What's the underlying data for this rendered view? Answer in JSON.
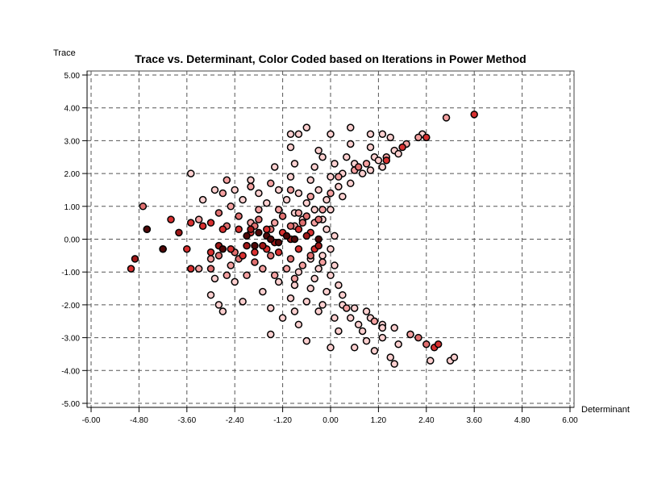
{
  "chart_data": {
    "type": "scatter",
    "title": "Trace vs. Determinant, Color Coded based on Iterations in Power Method",
    "xlabel": "Determinant",
    "ylabel": "Trace",
    "xlim": [
      -6.0,
      6.0
    ],
    "ylim": [
      -5.0,
      5.0
    ],
    "xticks": [
      "-6.00",
      "-4.80",
      "-3.60",
      "-2.40",
      "-1.20",
      "0.00",
      "1.20",
      "2.40",
      "3.60",
      "4.80",
      "6.00"
    ],
    "yticks": [
      "5.00",
      "4.00",
      "3.00",
      "2.00",
      "1.00",
      "0.00",
      "-1.00",
      "-2.00",
      "-3.00",
      "-4.00",
      "-5.00"
    ],
    "grid": true,
    "grid_style": "dashed",
    "legend": "none",
    "colors": {
      "very_light": "#ffd0d0",
      "light": "#f4a0a0",
      "medium": "#e07070",
      "red": "#d83030",
      "dark_red": "#a01818",
      "very_dark": "#500808",
      "marker_edge": "#000000"
    },
    "series": [
      {
        "color_key": "very_light",
        "points": [
          [
            -0.8,
            3.2
          ],
          [
            -0.6,
            3.4
          ],
          [
            0.0,
            3.2
          ],
          [
            0.5,
            3.4
          ],
          [
            1.0,
            3.2
          ],
          [
            1.3,
            3.2
          ],
          [
            1.5,
            3.1
          ],
          [
            2.3,
            3.2
          ],
          [
            -1.0,
            3.2
          ],
          [
            -1.0,
            2.8
          ],
          [
            -0.3,
            2.7
          ],
          [
            0.5,
            2.9
          ],
          [
            1.0,
            2.8
          ],
          [
            1.6,
            2.7
          ],
          [
            -0.2,
            2.5
          ],
          [
            0.4,
            2.5
          ],
          [
            1.1,
            2.5
          ],
          [
            1.7,
            2.6
          ],
          [
            -1.4,
            2.2
          ],
          [
            -0.9,
            2.3
          ],
          [
            -0.4,
            2.2
          ],
          [
            0.1,
            2.3
          ],
          [
            0.6,
            2.3
          ],
          [
            1.2,
            2.4
          ],
          [
            -3.5,
            2.0
          ],
          [
            -2.0,
            1.8
          ],
          [
            -1.0,
            1.9
          ],
          [
            -0.5,
            1.8
          ],
          [
            0.0,
            1.9
          ],
          [
            0.3,
            2.0
          ],
          [
            0.8,
            2.0
          ],
          [
            1.0,
            2.1
          ],
          [
            1.3,
            2.2
          ],
          [
            -2.9,
            1.5
          ],
          [
            -2.4,
            1.5
          ],
          [
            -1.8,
            1.4
          ],
          [
            -1.3,
            1.5
          ],
          [
            -0.8,
            1.4
          ],
          [
            -0.3,
            1.5
          ],
          [
            0.2,
            1.6
          ],
          [
            0.5,
            1.7
          ],
          [
            -3.2,
            1.2
          ],
          [
            -2.2,
            1.2
          ],
          [
            -1.6,
            1.1
          ],
          [
            -1.1,
            1.2
          ],
          [
            -0.6,
            1.1
          ],
          [
            -0.1,
            1.2
          ],
          [
            0.3,
            1.3
          ],
          [
            -0.9,
            0.8
          ],
          [
            -0.4,
            0.9
          ],
          [
            0.0,
            0.9
          ],
          [
            -0.2,
            0.6
          ],
          [
            -0.7,
            0.6
          ],
          [
            -0.1,
            0.3
          ],
          [
            0.1,
            0.1
          ],
          [
            -0.2,
            -0.5
          ],
          [
            0.0,
            -0.3
          ],
          [
            -0.5,
            -0.6
          ],
          [
            -0.3,
            -0.9
          ],
          [
            0.1,
            -0.8
          ],
          [
            -0.8,
            -1.0
          ],
          [
            -0.4,
            -1.2
          ],
          [
            0.0,
            -1.1
          ],
          [
            0.2,
            -1.4
          ],
          [
            -1.3,
            -1.3
          ],
          [
            -0.9,
            -1.4
          ],
          [
            -0.5,
            -1.5
          ],
          [
            -0.1,
            -1.6
          ],
          [
            0.3,
            -1.7
          ],
          [
            -2.9,
            -1.2
          ],
          [
            -2.4,
            -1.3
          ],
          [
            -1.7,
            -1.6
          ],
          [
            -1.0,
            -1.8
          ],
          [
            -0.6,
            -1.9
          ],
          [
            -0.2,
            -2.0
          ],
          [
            0.3,
            -2.0
          ],
          [
            0.6,
            -2.1
          ],
          [
            -3.0,
            -1.7
          ],
          [
            -2.2,
            -1.9
          ],
          [
            -1.5,
            -2.1
          ],
          [
            -0.9,
            -2.2
          ],
          [
            -0.3,
            -2.2
          ],
          [
            0.1,
            -2.4
          ],
          [
            0.5,
            -2.4
          ],
          [
            0.9,
            -2.2
          ],
          [
            -2.8,
            -2.0
          ],
          [
            -1.2,
            -2.4
          ],
          [
            -0.8,
            -2.6
          ],
          [
            0.2,
            -2.8
          ],
          [
            0.7,
            -2.6
          ],
          [
            1.0,
            -2.4
          ],
          [
            1.3,
            -2.6
          ],
          [
            -2.7,
            -2.2
          ],
          [
            -1.5,
            -2.9
          ],
          [
            -0.6,
            -3.1
          ],
          [
            0.0,
            -3.3
          ],
          [
            0.9,
            -3.1
          ],
          [
            1.3,
            -3.0
          ],
          [
            1.7,
            -3.2
          ],
          [
            0.6,
            -3.3
          ],
          [
            1.1,
            -3.4
          ],
          [
            1.5,
            -3.6
          ],
          [
            1.6,
            -3.8
          ],
          [
            2.5,
            -3.7
          ],
          [
            3.0,
            -3.7
          ],
          [
            3.1,
            -3.6
          ],
          [
            2.0,
            -2.9
          ],
          [
            1.3,
            -2.7
          ],
          [
            1.6,
            -2.7
          ],
          [
            0.8,
            -2.8
          ]
        ]
      },
      {
        "color_key": "light",
        "points": [
          [
            2.9,
            3.7
          ],
          [
            2.2,
            3.1
          ],
          [
            1.9,
            2.9
          ],
          [
            1.4,
            2.5
          ],
          [
            0.9,
            2.3
          ],
          [
            0.6,
            2.1
          ],
          [
            0.2,
            1.9
          ],
          [
            -2.6,
            1.8
          ],
          [
            -2.7,
            1.4
          ],
          [
            -2.0,
            1.6
          ],
          [
            -1.5,
            1.7
          ],
          [
            -1.0,
            1.5
          ],
          [
            -0.5,
            1.3
          ],
          [
            0.0,
            1.4
          ],
          [
            -2.5,
            1.0
          ],
          [
            -1.8,
            0.9
          ],
          [
            -1.3,
            0.9
          ],
          [
            -0.8,
            0.8
          ],
          [
            -0.2,
            0.9
          ],
          [
            -3.3,
            0.6
          ],
          [
            -2.0,
            0.5
          ],
          [
            -1.4,
            0.5
          ],
          [
            -0.9,
            0.4
          ],
          [
            -0.4,
            0.5
          ],
          [
            -3.0,
            -0.6
          ],
          [
            -2.5,
            -0.8
          ],
          [
            -1.7,
            -0.9
          ],
          [
            -1.1,
            -0.9
          ],
          [
            -0.7,
            -0.8
          ],
          [
            -0.2,
            -0.7
          ],
          [
            -2.1,
            -1.1
          ],
          [
            -1.4,
            -1.1
          ],
          [
            -0.9,
            -1.2
          ],
          [
            -2.6,
            -1.1
          ],
          [
            -3.3,
            -0.9
          ],
          [
            2.0,
            -2.9
          ],
          [
            1.1,
            -2.5
          ],
          [
            0.4,
            -2.1
          ]
        ]
      },
      {
        "color_key": "medium",
        "points": [
          [
            -4.7,
            1.0
          ],
          [
            -2.8,
            0.8
          ],
          [
            -2.3,
            0.7
          ],
          [
            -1.8,
            0.6
          ],
          [
            -1.2,
            0.7
          ],
          [
            -0.6,
            0.7
          ],
          [
            -0.3,
            0.6
          ],
          [
            -2.6,
            0.4
          ],
          [
            -1.9,
            0.4
          ],
          [
            -1.5,
            0.3
          ],
          [
            -1.0,
            0.4
          ],
          [
            -0.7,
            0.5
          ],
          [
            -2.8,
            -0.5
          ],
          [
            -2.3,
            -0.6
          ],
          [
            -1.9,
            -0.7
          ],
          [
            -1.5,
            -0.5
          ],
          [
            -1.0,
            -0.6
          ],
          [
            -0.5,
            -0.5
          ],
          [
            -3.0,
            -0.9
          ],
          [
            -2.4,
            -0.4
          ],
          [
            2.2,
            -3.0
          ],
          [
            2.4,
            -3.2
          ],
          [
            0.7,
            2.2
          ]
        ]
      },
      {
        "color_key": "red",
        "points": [
          [
            3.6,
            3.8
          ],
          [
            2.4,
            3.1
          ],
          [
            1.8,
            2.8
          ],
          [
            1.4,
            2.4
          ],
          [
            -5.0,
            -0.9
          ],
          [
            -4.0,
            0.6
          ],
          [
            -3.5,
            0.5
          ],
          [
            -3.2,
            0.4
          ],
          [
            -3.0,
            0.5
          ],
          [
            -2.7,
            0.3
          ],
          [
            -2.3,
            0.3
          ],
          [
            -2.0,
            0.2
          ],
          [
            -1.6,
            0.3
          ],
          [
            -1.2,
            0.2
          ],
          [
            -0.8,
            0.3
          ],
          [
            -0.5,
            0.2
          ],
          [
            -3.6,
            -0.3
          ],
          [
            -3.0,
            -0.4
          ],
          [
            -2.5,
            -0.3
          ],
          [
            -2.2,
            -0.5
          ],
          [
            -1.9,
            -0.4
          ],
          [
            -1.6,
            -0.3
          ],
          [
            -1.3,
            -0.4
          ],
          [
            -0.8,
            -0.3
          ],
          [
            -0.4,
            -0.3
          ],
          [
            -3.5,
            -0.9
          ],
          [
            2.6,
            -3.3
          ],
          [
            2.7,
            -3.2
          ]
        ]
      },
      {
        "color_key": "dark_red",
        "points": [
          [
            -4.6,
            0.3
          ],
          [
            -3.8,
            0.2
          ],
          [
            -4.2,
            -0.3
          ],
          [
            -4.9,
            -0.6
          ],
          [
            -2.0,
            0.3
          ],
          [
            -1.7,
            -0.2
          ],
          [
            -1.4,
            -0.1
          ],
          [
            -1.0,
            0.0
          ],
          [
            -0.6,
            0.1
          ],
          [
            -0.3,
            -0.2
          ],
          [
            -2.1,
            -0.2
          ],
          [
            -2.8,
            -0.2
          ]
        ]
      },
      {
        "color_key": "very_dark",
        "points": [
          [
            -4.6,
            0.3
          ],
          [
            -2.7,
            -0.3
          ],
          [
            -2.1,
            0.1
          ],
          [
            -1.9,
            -0.2
          ],
          [
            -1.8,
            0.2
          ],
          [
            -1.6,
            0.1
          ],
          [
            -1.5,
            0.0
          ],
          [
            -1.3,
            -0.1
          ],
          [
            -1.1,
            0.1
          ],
          [
            -0.9,
            0.0
          ],
          [
            -0.3,
            0.0
          ],
          [
            -4.2,
            -0.3
          ]
        ]
      }
    ]
  }
}
